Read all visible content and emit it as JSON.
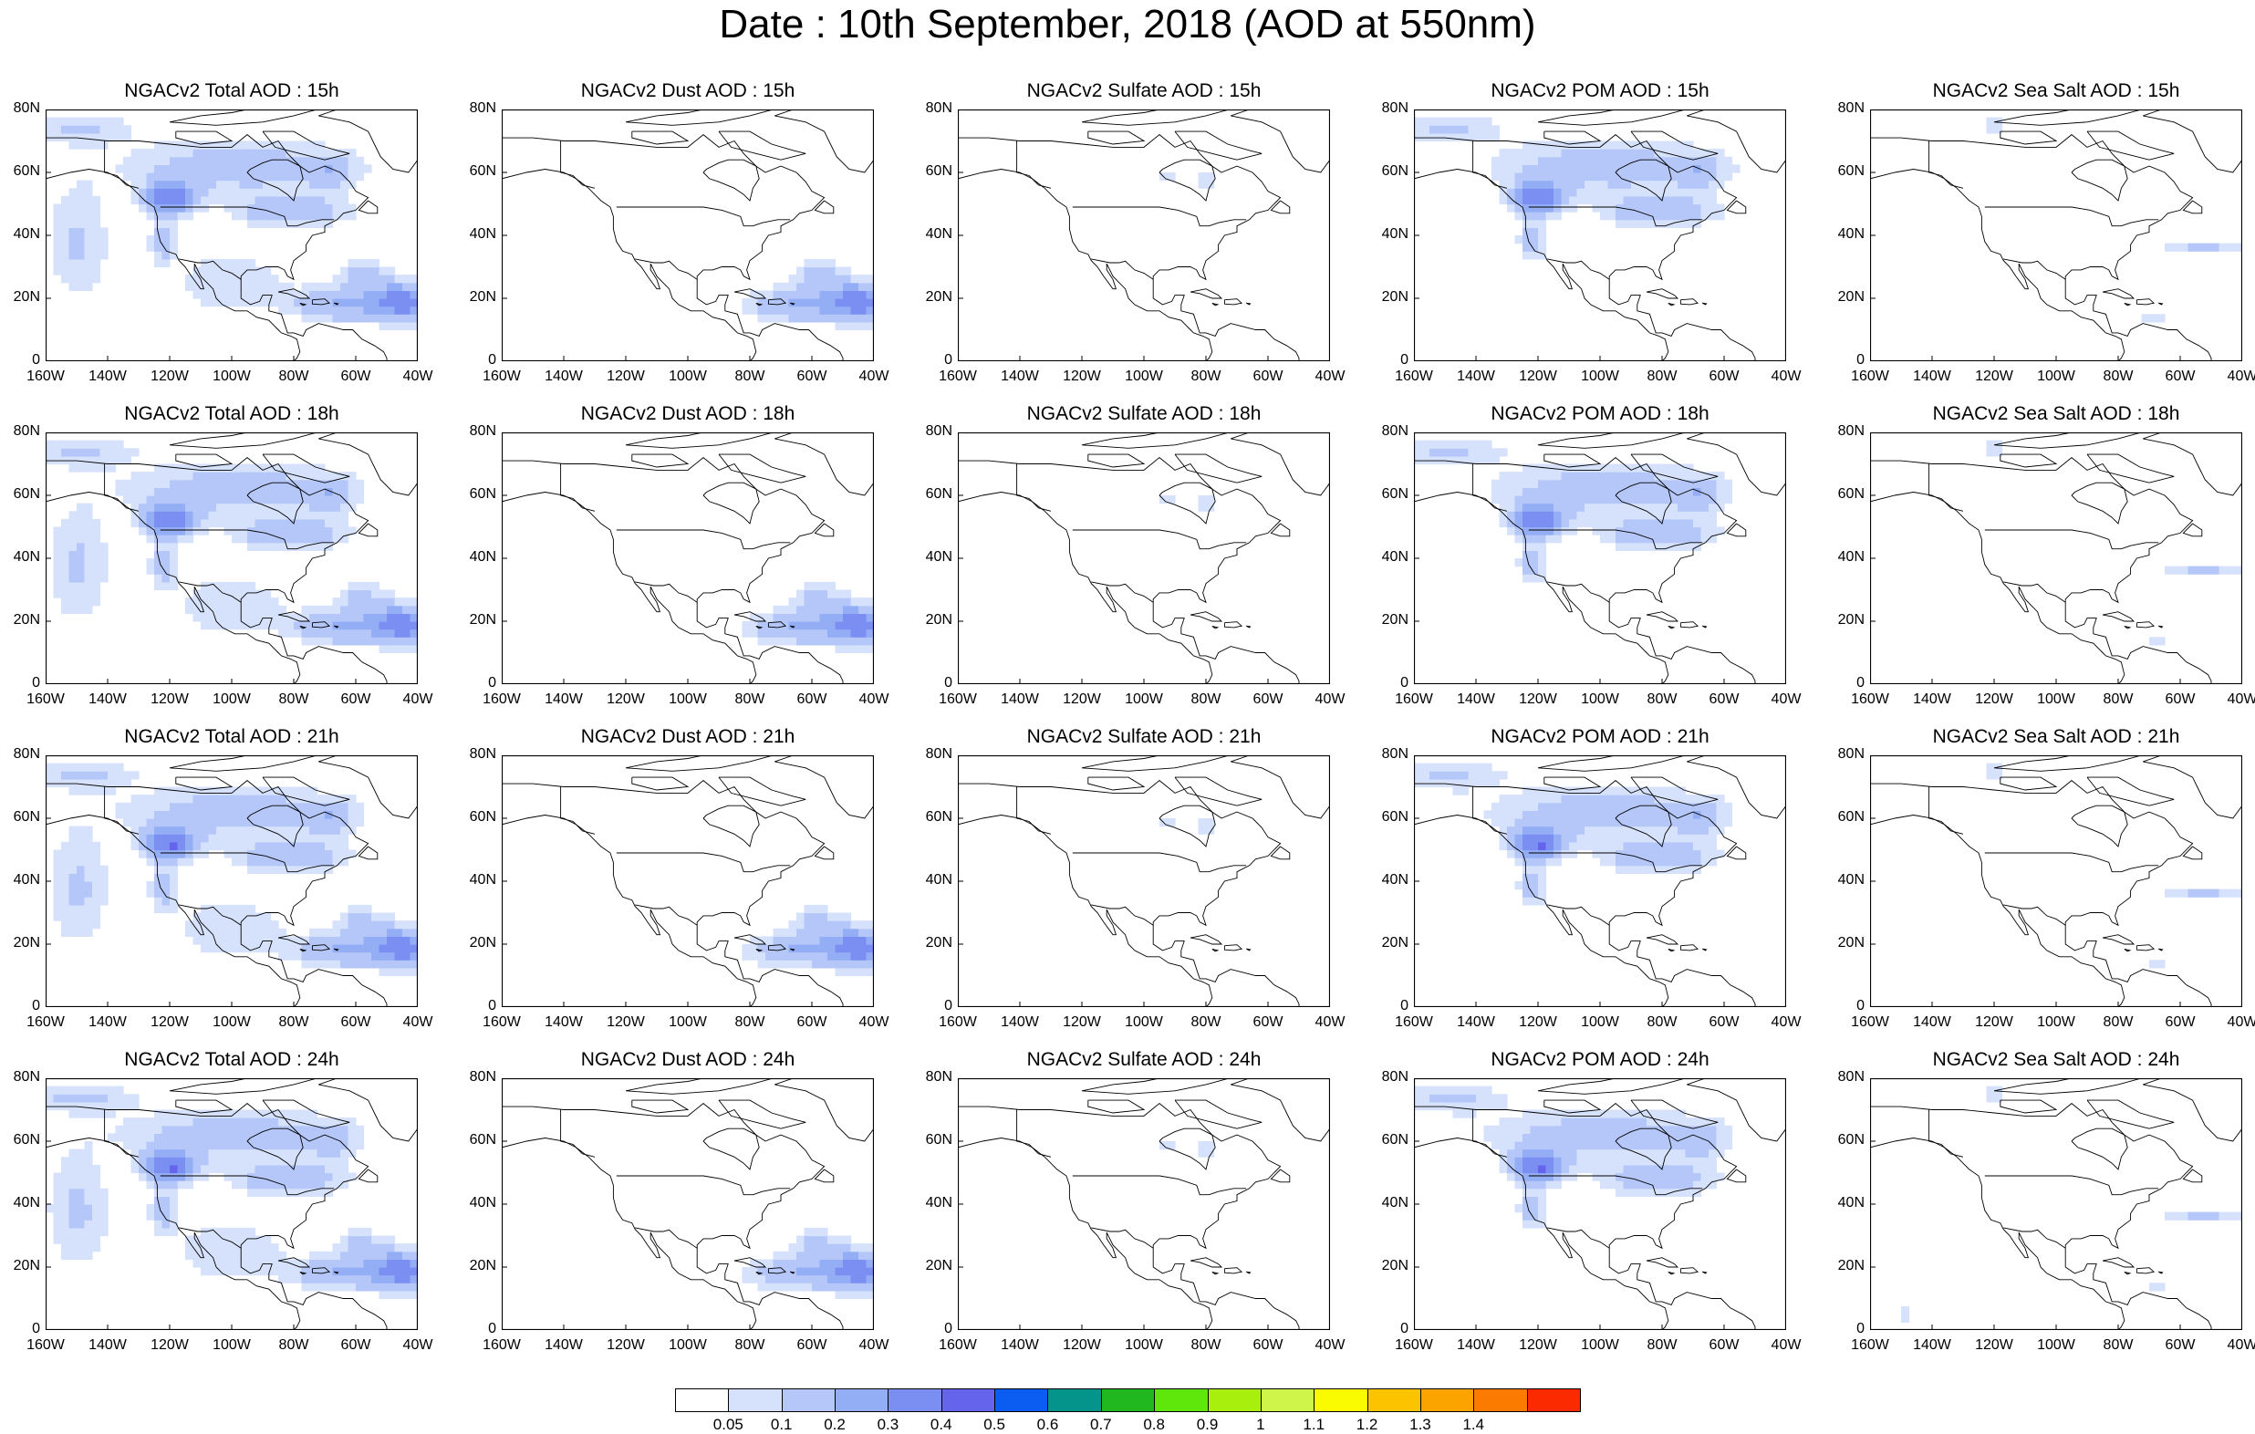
{
  "title": "Date : 10th September, 2018 (AOD at 550nm)",
  "map_axes": {
    "lat_ticks": [
      "80N",
      "60N",
      "40N",
      "20N",
      "0"
    ],
    "lon_ticks": [
      "160W",
      "140W",
      "120W",
      "100W",
      "80W",
      "60W",
      "40W"
    ]
  },
  "colors": {
    "levels": [
      "#ffffff",
      "#d6e2fb",
      "#b4c7f8",
      "#94aef6",
      "#7b8ff3",
      "#6464ed",
      "#0a5df0",
      "#04948c",
      "#20b81e",
      "#5fe60a",
      "#a8ef0d",
      "#cff54b",
      "#fbfb00",
      "#fbc300",
      "#fba400",
      "#fb7a00",
      "#fb2a00"
    ],
    "coast": "#000000"
  },
  "colorbar_labels": [
    "0.05",
    "0.1",
    "0.2",
    "0.3",
    "0.4",
    "0.5",
    "0.6",
    "0.7",
    "0.8",
    "0.9",
    "1",
    "1.1",
    "1.2",
    "1.3",
    "1.4"
  ],
  "panels": [
    {
      "title": "NGACv2 Total AOD : 15h",
      "species": "total"
    },
    {
      "title": "NGACv2 Dust AOD : 15h",
      "species": "dust"
    },
    {
      "title": "NGACv2 Sulfate AOD : 15h",
      "species": "sulfate"
    },
    {
      "title": "NGACv2 POM AOD : 15h",
      "species": "pom"
    },
    {
      "title": "NGACv2 Sea Salt AOD : 15h",
      "species": "seasalt"
    },
    {
      "title": "NGACv2 Total AOD : 18h",
      "species": "total"
    },
    {
      "title": "NGACv2 Dust AOD : 18h",
      "species": "dust"
    },
    {
      "title": "NGACv2 Sulfate AOD : 18h",
      "species": "sulfate"
    },
    {
      "title": "NGACv2 POM AOD : 18h",
      "species": "pom"
    },
    {
      "title": "NGACv2 Sea Salt AOD : 18h",
      "species": "seasalt"
    },
    {
      "title": "NGACv2 Total AOD : 21h",
      "species": "total"
    },
    {
      "title": "NGACv2 Dust AOD : 21h",
      "species": "dust"
    },
    {
      "title": "NGACv2 Sulfate AOD : 21h",
      "species": "sulfate"
    },
    {
      "title": "NGACv2 POM AOD : 21h",
      "species": "pom"
    },
    {
      "title": "NGACv2 Sea Salt AOD : 21h",
      "species": "seasalt"
    },
    {
      "title": "NGACv2 Total AOD : 24h",
      "species": "total"
    },
    {
      "title": "NGACv2 Dust AOD : 24h",
      "species": "dust"
    },
    {
      "title": "NGACv2 Sulfate AOD : 24h",
      "species": "sulfate"
    },
    {
      "title": "NGACv2 POM AOD : 24h",
      "species": "pom"
    },
    {
      "title": "NGACv2 Sea Salt  AOD : 24h",
      "species": "seasalt"
    }
  ]
}
